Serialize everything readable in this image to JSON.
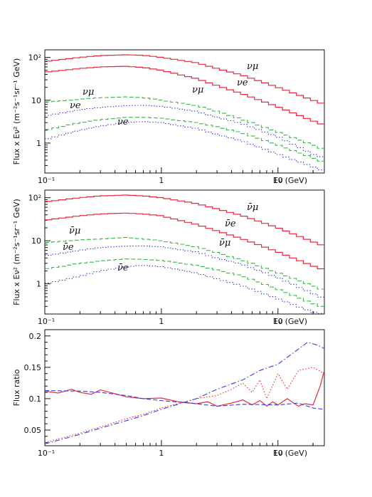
{
  "colors": {
    "red": "#e8283a",
    "green": "#38b84a",
    "blue": "#3a3ae8",
    "axis": "#111111"
  },
  "chart_data": [
    {
      "type": "line",
      "xscale": "log",
      "yscale": "log",
      "xlim": [
        0.1,
        25
      ],
      "ylim": [
        0.2,
        150
      ],
      "xlabel": "Eν (GeV)",
      "ylabel": "Flux x Eν² (m⁻²s⁻¹sr⁻¹ GeV)",
      "xticks": [
        "10⁻¹",
        "1",
        "10"
      ],
      "yticks": [
        "1",
        "10",
        "10²"
      ],
      "annotations": [
        "νμ",
        "νe",
        "νμ",
        "νe",
        "νμ",
        "νe"
      ],
      "series": [
        {
          "color": "red",
          "style": "solid",
          "x": [
            0.1,
            0.2,
            0.3,
            0.5,
            0.7,
            1,
            2,
            3,
            5,
            10,
            20,
            25
          ],
          "y": [
            80,
            100,
            110,
            115,
            112,
            100,
            75,
            55,
            38,
            20,
            10,
            8
          ]
        },
        {
          "color": "red",
          "style": "solid",
          "x": [
            0.1,
            0.2,
            0.3,
            0.5,
            0.7,
            1,
            2,
            3,
            5,
            10,
            20,
            25
          ],
          "y": [
            45,
            55,
            60,
            62,
            58,
            50,
            32,
            22,
            14,
            7,
            3.3,
            2.6
          ]
        },
        {
          "color": "green",
          "style": "dashed",
          "x": [
            0.1,
            0.2,
            0.3,
            0.5,
            0.7,
            1,
            2,
            3,
            5,
            10,
            20,
            25
          ],
          "y": [
            9,
            10.5,
            11.5,
            12,
            11.5,
            10,
            7.5,
            5.5,
            3.5,
            1.8,
            0.9,
            0.7
          ]
        },
        {
          "color": "blue",
          "style": "dotted",
          "x": [
            0.1,
            0.2,
            0.3,
            0.5,
            0.7,
            1,
            2,
            3,
            5,
            10,
            20,
            25
          ],
          "y": [
            4.3,
            6,
            6.8,
            7.5,
            7.6,
            7.2,
            5.5,
            4,
            2.8,
            1.4,
            0.55,
            0.45
          ]
        },
        {
          "color": "green",
          "style": "dashed",
          "x": [
            0.1,
            0.2,
            0.3,
            0.5,
            0.7,
            1,
            2,
            3,
            5,
            10,
            20,
            25
          ],
          "y": [
            2,
            3,
            3.5,
            4,
            4,
            3.8,
            3,
            2.4,
            1.7,
            0.9,
            0.45,
            0.35
          ]
        },
        {
          "color": "blue",
          "style": "dotted",
          "x": [
            0.1,
            0.2,
            0.3,
            0.5,
            0.7,
            1,
            2,
            3,
            5,
            10,
            20,
            25
          ],
          "y": [
            1.2,
            2,
            2.5,
            3,
            3.2,
            3,
            2.2,
            1.6,
            1.1,
            0.55,
            0.28,
            0.22
          ]
        }
      ]
    },
    {
      "type": "line",
      "xscale": "log",
      "yscale": "log",
      "xlim": [
        0.1,
        25
      ],
      "ylim": [
        0.2,
        150
      ],
      "xlabel": "Eν (GeV)",
      "ylabel": "Flux x Eν² (m⁻²s⁻¹sr⁻¹ GeV)",
      "xticks": [
        "10⁻¹",
        "1",
        "10"
      ],
      "yticks": [
        "1",
        "10",
        "10²"
      ],
      "annotations": [
        "ν̄μ",
        "ν̄e",
        "ν̄μ",
        "ν̄e",
        "ν̄μ",
        "ν̄e"
      ],
      "series": [
        {
          "color": "red",
          "style": "solid",
          "x": [
            0.1,
            0.2,
            0.3,
            0.5,
            0.7,
            1,
            2,
            3,
            5,
            10,
            20,
            25
          ],
          "y": [
            80,
            100,
            110,
            115,
            110,
            100,
            73,
            55,
            38,
            20,
            9.5,
            7.5
          ]
        },
        {
          "color": "red",
          "style": "solid",
          "x": [
            0.1,
            0.2,
            0.3,
            0.5,
            0.7,
            1,
            2,
            3,
            5,
            10,
            20,
            25
          ],
          "y": [
            30,
            38,
            42,
            44,
            42,
            38,
            24,
            17,
            11,
            5.5,
            2.6,
            2.1
          ]
        },
        {
          "color": "green",
          "style": "dashed",
          "x": [
            0.1,
            0.2,
            0.3,
            0.5,
            0.7,
            1,
            2,
            3,
            5,
            10,
            20,
            25
          ],
          "y": [
            9,
            10.5,
            11,
            12,
            11,
            10,
            7.2,
            5.3,
            3.5,
            1.8,
            0.9,
            0.7
          ]
        },
        {
          "color": "blue",
          "style": "dotted",
          "x": [
            0.1,
            0.2,
            0.3,
            0.5,
            0.7,
            1,
            2,
            3,
            5,
            10,
            20,
            25
          ],
          "y": [
            4.5,
            6,
            7,
            7.5,
            7.6,
            7.2,
            5.5,
            4,
            2.8,
            1.4,
            0.6,
            0.45
          ]
        },
        {
          "color": "green",
          "style": "dashed",
          "x": [
            0.1,
            0.2,
            0.3,
            0.5,
            0.7,
            1,
            2,
            3,
            5,
            10,
            20,
            25
          ],
          "y": [
            2.2,
            3,
            3.4,
            3.8,
            3.7,
            3.5,
            2.7,
            2.1,
            1.5,
            0.75,
            0.35,
            0.28
          ]
        },
        {
          "color": "blue",
          "style": "dotted",
          "x": [
            0.1,
            0.2,
            0.3,
            0.5,
            0.7,
            1,
            2,
            3,
            5,
            10,
            20,
            25
          ],
          "y": [
            1,
            1.5,
            2,
            2.5,
            2.7,
            2.5,
            1.8,
            1.3,
            0.9,
            0.45,
            0.22,
            0.2
          ]
        }
      ]
    },
    {
      "type": "line",
      "xscale": "log",
      "yscale": "linear",
      "xlim": [
        0.1,
        25
      ],
      "ylim": [
        0.025,
        0.21
      ],
      "xlabel": "Eν (GeV)",
      "ylabel": "Flux ratio",
      "xticks": [
        "10⁻¹",
        "1",
        "10"
      ],
      "yticks": [
        "0.05",
        "0.1",
        "0.15",
        "0.2"
      ],
      "series": [
        {
          "color": "red",
          "style": "solid",
          "x": [
            0.1,
            0.13,
            0.17,
            0.2,
            0.25,
            0.3,
            0.4,
            0.5,
            0.7,
            1,
            1.4,
            2,
            2.5,
            3,
            4,
            5,
            6,
            7,
            8,
            9,
            10,
            12,
            15,
            17,
            20,
            23,
            25
          ],
          "y": [
            0.112,
            0.109,
            0.115,
            0.11,
            0.107,
            0.114,
            0.108,
            0.103,
            0.1,
            0.101,
            0.095,
            0.092,
            0.095,
            0.088,
            0.093,
            0.098,
            0.09,
            0.097,
            0.088,
            0.095,
            0.09,
            0.1,
            0.088,
            0.092,
            0.09,
            0.12,
            0.145
          ]
        },
        {
          "color": "blue",
          "style": "dashed",
          "x": [
            0.1,
            0.2,
            0.3,
            0.5,
            0.7,
            1,
            2,
            3,
            5,
            10,
            15,
            20,
            25
          ],
          "y": [
            0.113,
            0.112,
            0.11,
            0.105,
            0.1,
            0.097,
            0.092,
            0.088,
            0.091,
            0.09,
            0.093,
            0.085,
            0.083
          ]
        },
        {
          "color": "red",
          "style": "dotted",
          "x": [
            0.1,
            0.2,
            0.3,
            0.5,
            0.7,
            1,
            2,
            3,
            4,
            5,
            6,
            7,
            8,
            10,
            12,
            15,
            20,
            25
          ],
          "y": [
            0.03,
            0.045,
            0.055,
            0.068,
            0.075,
            0.085,
            0.1,
            0.105,
            0.115,
            0.125,
            0.11,
            0.13,
            0.1,
            0.14,
            0.115,
            0.145,
            0.15,
            0.14
          ]
        },
        {
          "color": "blue",
          "style": "dashdot",
          "x": [
            0.1,
            0.2,
            0.3,
            0.5,
            0.7,
            1,
            2,
            3,
            5,
            7,
            10,
            14,
            18,
            22,
            25
          ],
          "y": [
            0.028,
            0.043,
            0.053,
            0.065,
            0.073,
            0.083,
            0.1,
            0.115,
            0.13,
            0.145,
            0.155,
            0.175,
            0.19,
            0.185,
            0.18
          ]
        }
      ]
    }
  ]
}
